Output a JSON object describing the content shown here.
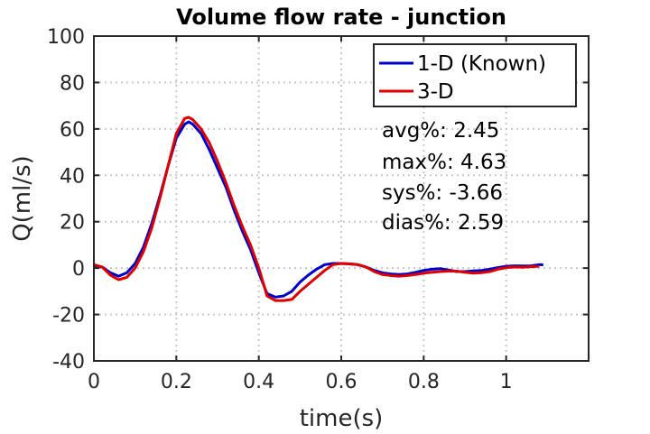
{
  "chart_data": {
    "type": "line",
    "title": "Volume flow rate - junction",
    "xlabel": "time(s)",
    "ylabel": "Q(ml/s)",
    "xlim": [
      0,
      1.2
    ],
    "ylim": [
      -40,
      100
    ],
    "xticks": [
      0,
      0.2,
      0.4,
      0.6,
      0.8,
      1
    ],
    "xtick_labels": [
      "0",
      "0.2",
      "0.4",
      "0.6",
      "0.8",
      "1"
    ],
    "yticks": [
      -40,
      -20,
      0,
      20,
      40,
      60,
      80,
      100
    ],
    "ytick_labels": [
      "-40",
      "-20",
      "0",
      "20",
      "40",
      "60",
      "80",
      "100"
    ],
    "grid": true,
    "legend_position": "top-right",
    "series": [
      {
        "name": "1-D (Known)",
        "color": "#0000cc",
        "x": [
          0,
          0.02,
          0.04,
          0.06,
          0.08,
          0.1,
          0.12,
          0.14,
          0.16,
          0.18,
          0.2,
          0.22,
          0.23,
          0.24,
          0.26,
          0.28,
          0.3,
          0.32,
          0.34,
          0.36,
          0.38,
          0.4,
          0.42,
          0.44,
          0.46,
          0.48,
          0.5,
          0.52,
          0.54,
          0.56,
          0.58,
          0.6,
          0.62,
          0.64,
          0.66,
          0.68,
          0.7,
          0.72,
          0.74,
          0.76,
          0.78,
          0.8,
          0.82,
          0.84,
          0.86,
          0.88,
          0.9,
          0.92,
          0.94,
          0.96,
          0.98,
          1.0,
          1.02,
          1.04,
          1.06,
          1.08,
          1.09
        ],
        "y": [
          1,
          0.5,
          -2,
          -3.5,
          -2,
          2,
          9,
          19,
          31,
          44,
          56,
          62,
          63,
          62,
          58,
          51,
          43,
          35,
          25,
          16,
          8,
          -2,
          -11,
          -12.5,
          -12,
          -10,
          -6,
          -3,
          -0.5,
          1.5,
          2,
          2,
          1.8,
          1.5,
          0.5,
          -1,
          -2,
          -2.5,
          -2.8,
          -2.5,
          -1.8,
          -1,
          -0.5,
          -0.2,
          -0.8,
          -1.5,
          -1.5,
          -1.2,
          -1,
          -0.5,
          0.2,
          0.8,
          1,
          0.9,
          1,
          1.5,
          1.4
        ]
      },
      {
        "name": "3-D",
        "color": "#e00000",
        "x": [
          0,
          0.02,
          0.04,
          0.06,
          0.08,
          0.1,
          0.12,
          0.14,
          0.16,
          0.18,
          0.2,
          0.22,
          0.23,
          0.24,
          0.26,
          0.28,
          0.3,
          0.32,
          0.34,
          0.36,
          0.38,
          0.4,
          0.42,
          0.44,
          0.46,
          0.48,
          0.5,
          0.52,
          0.54,
          0.56,
          0.58,
          0.6,
          0.62,
          0.64,
          0.66,
          0.68,
          0.7,
          0.72,
          0.74,
          0.76,
          0.78,
          0.8,
          0.82,
          0.84,
          0.86,
          0.88,
          0.9,
          0.92,
          0.94,
          0.96,
          0.98,
          1.0,
          1.02,
          1.04,
          1.06,
          1.08
        ],
        "y": [
          1.5,
          0.5,
          -3,
          -5,
          -4,
          0,
          7,
          17,
          30,
          44,
          58,
          64.5,
          65,
          64,
          60,
          54,
          46,
          37,
          27,
          18,
          10,
          0,
          -12,
          -14,
          -14,
          -13.5,
          -10,
          -7,
          -4,
          -1,
          1.5,
          2,
          1.8,
          1.5,
          0.5,
          -1.5,
          -2.8,
          -3.2,
          -3.5,
          -3.2,
          -2.8,
          -2.2,
          -1.8,
          -1.5,
          -1.3,
          -1.3,
          -1.8,
          -2.2,
          -2,
          -1.5,
          -0.5,
          0.2,
          0.5,
          0.4,
          0.6,
          0.8
        ]
      }
    ],
    "annotations": [
      "avg%: 2.45",
      "max%: 4.63",
      "sys%: -3.66",
      "dias%: 2.59"
    ]
  }
}
